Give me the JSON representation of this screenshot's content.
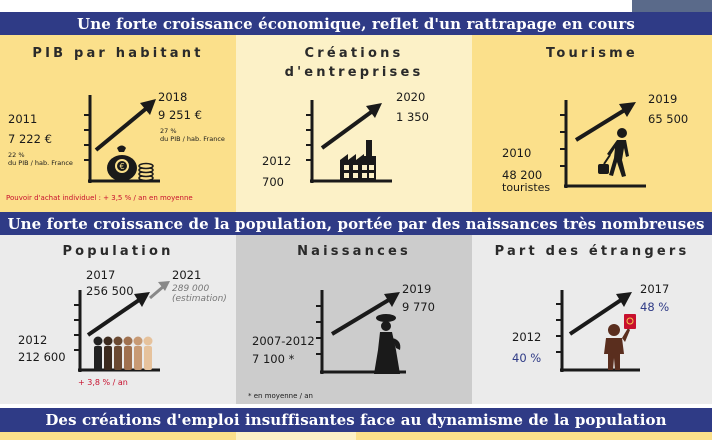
{
  "banners": [
    "Une forte croissance économique, reflet d'un rattrapage en cours",
    "Une forte croissance de la population, portée par des naissances très nombreuses",
    "Des créations d'emploi insuffisantes face au dynamisme de la population"
  ],
  "colors": {
    "banner": "#2f3b86",
    "panel_yellow": "#fbe08b",
    "panel_cream": "#fcf1c7",
    "panel_grey": "#ebebeb",
    "panel_dark_grey": "#cccccc",
    "accent_red": "#c8102e",
    "accent_blue": "#2f3b86"
  },
  "economy": {
    "pib": {
      "title": "PIB par habitant",
      "start_year": "2011",
      "start_value": "7 222 €",
      "start_share": "22 %",
      "start_share_label": "du PIB / hab. France",
      "end_year": "2018",
      "end_value": "9 251 €",
      "end_share": "27 %",
      "end_share_label": "du PIB / hab. France",
      "note": "Pouvoir d'achat individuel : + 3,5 % / an en moyenne",
      "icon": "money-bag-icon"
    },
    "entreprises": {
      "title_line1": "Créations",
      "title_line2": "d'entreprises",
      "start_year": "2012",
      "start_value": "700",
      "end_year": "2020",
      "end_value": "1 350",
      "icon": "factory-icon"
    },
    "tourisme": {
      "title": "Tourisme",
      "start_year": "2010",
      "start_value": "48 200",
      "start_unit": "touristes",
      "end_year": "2019",
      "end_value": "65 500",
      "icon": "traveler-icon"
    }
  },
  "population": {
    "population": {
      "title": "Population",
      "start_year": "2012",
      "start_value": "212 600",
      "mid_year": "2017",
      "mid_value": "256 500",
      "end_year": "2021",
      "end_value": "289 000",
      "end_note": "(estimation)",
      "note": "+ 3,8 % / an",
      "icon": "people-icon"
    },
    "naissances": {
      "title": "Naissances",
      "start_year": "2007-2012",
      "start_value": "7 100 *",
      "end_year": "2019",
      "end_value": "9 770",
      "footnote": "* en moyenne / an",
      "icon": "mother-carrying-icon"
    },
    "etrangers": {
      "title": "Part des étrangers",
      "start_year": "2012",
      "start_value": "40 %",
      "end_year": "2017",
      "end_value": "48 %",
      "icon": "person-with-passport-icon"
    }
  }
}
